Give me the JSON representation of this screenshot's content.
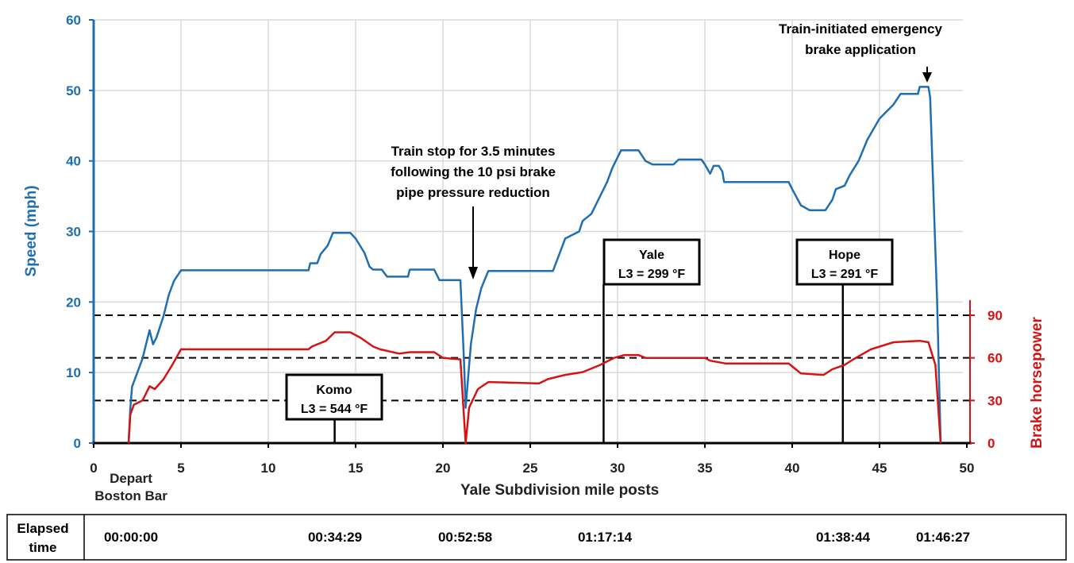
{
  "chart_data": {
    "type": "line",
    "xlabel": "Yale Subdivision mile posts",
    "ylabel": "Speed (mph)",
    "y2label": "Brake horsepower",
    "xlim": [
      0,
      50
    ],
    "ylim": [
      0,
      60
    ],
    "y2lim": [
      0,
      90
    ],
    "x_ticks": [
      "0",
      "5",
      "10",
      "15",
      "20",
      "25",
      "30",
      "35",
      "40",
      "45",
      "50"
    ],
    "y_ticks": [
      "0",
      "10",
      "20",
      "30",
      "40",
      "50",
      "60"
    ],
    "y2_ticks": [
      "0",
      "30",
      "60",
      "90"
    ],
    "grid": true,
    "colors": {
      "speed": "#1f6fb0",
      "bhp": "#d41414"
    },
    "depart_label": [
      "Depart",
      "Boston Bar"
    ],
    "series": [
      {
        "name": "Speed (mph)",
        "axis": "left",
        "points": [
          [
            2.0,
            0
          ],
          [
            2.1,
            5
          ],
          [
            2.2,
            8
          ],
          [
            2.5,
            10
          ],
          [
            2.8,
            12
          ],
          [
            3.0,
            14
          ],
          [
            3.2,
            16
          ],
          [
            3.4,
            14
          ],
          [
            3.6,
            15
          ],
          [
            4.0,
            18
          ],
          [
            4.3,
            21
          ],
          [
            4.6,
            23
          ],
          [
            5.0,
            24.5
          ],
          [
            12.3,
            24.5
          ],
          [
            12.4,
            25.5
          ],
          [
            12.8,
            25.5
          ],
          [
            13.0,
            26.8
          ],
          [
            13.4,
            28
          ],
          [
            13.7,
            29.8
          ],
          [
            14.7,
            29.8
          ],
          [
            15.0,
            29
          ],
          [
            15.5,
            27
          ],
          [
            15.8,
            25
          ],
          [
            16.0,
            24.6
          ],
          [
            16.5,
            24.6
          ],
          [
            16.8,
            23.6
          ],
          [
            18.0,
            23.6
          ],
          [
            18.1,
            24.6
          ],
          [
            19.5,
            24.6
          ],
          [
            19.8,
            23.1
          ],
          [
            21.0,
            23.1
          ],
          [
            21.2,
            12
          ],
          [
            21.3,
            5
          ],
          [
            21.4,
            8
          ],
          [
            21.6,
            14
          ],
          [
            21.9,
            19
          ],
          [
            22.2,
            22
          ],
          [
            22.6,
            24.4
          ],
          [
            26.3,
            24.4
          ],
          [
            26.5,
            25.7
          ],
          [
            26.7,
            27
          ],
          [
            27.0,
            29
          ],
          [
            27.8,
            30
          ],
          [
            28.0,
            31.5
          ],
          [
            28.5,
            32.5
          ],
          [
            29.0,
            35
          ],
          [
            29.4,
            37
          ],
          [
            29.7,
            39
          ],
          [
            30.0,
            40.5
          ],
          [
            30.2,
            41.5
          ],
          [
            31.2,
            41.5
          ],
          [
            31.6,
            40
          ],
          [
            32.0,
            39.5
          ],
          [
            33.2,
            39.5
          ],
          [
            33.5,
            40.2
          ],
          [
            34.8,
            40.2
          ],
          [
            35.0,
            39.5
          ],
          [
            35.3,
            38.2
          ],
          [
            35.5,
            39.3
          ],
          [
            35.8,
            39.3
          ],
          [
            36.0,
            38.5
          ],
          [
            36.1,
            37
          ],
          [
            39.8,
            37
          ],
          [
            40.0,
            36
          ],
          [
            40.5,
            33.7
          ],
          [
            41.0,
            33
          ],
          [
            41.9,
            33
          ],
          [
            42.3,
            34.5
          ],
          [
            42.5,
            36
          ],
          [
            43.0,
            36.5
          ],
          [
            43.3,
            38
          ],
          [
            43.8,
            40
          ],
          [
            44.3,
            43
          ],
          [
            45.0,
            46
          ],
          [
            45.8,
            48
          ],
          [
            46.2,
            49.5
          ],
          [
            47.2,
            49.5
          ],
          [
            47.3,
            50.5
          ],
          [
            47.8,
            50.5
          ],
          [
            47.9,
            49
          ],
          [
            48.3,
            20
          ],
          [
            48.5,
            0
          ]
        ]
      },
      {
        "name": "Brake horsepower",
        "axis": "right",
        "points": [
          [
            2.0,
            0
          ],
          [
            2.1,
            20
          ],
          [
            2.3,
            27
          ],
          [
            2.8,
            30
          ],
          [
            3.2,
            40
          ],
          [
            3.5,
            38
          ],
          [
            4.0,
            45
          ],
          [
            4.5,
            55
          ],
          [
            5.0,
            66
          ],
          [
            12.3,
            66
          ],
          [
            12.5,
            68
          ],
          [
            13.3,
            72
          ],
          [
            13.8,
            78
          ],
          [
            14.7,
            78
          ],
          [
            15.3,
            74
          ],
          [
            16.0,
            68
          ],
          [
            16.4,
            66
          ],
          [
            17.5,
            63
          ],
          [
            18.1,
            64
          ],
          [
            19.5,
            64
          ],
          [
            20.0,
            60
          ],
          [
            21.0,
            59
          ],
          [
            21.3,
            0
          ],
          [
            21.5,
            25
          ],
          [
            22.0,
            38
          ],
          [
            22.6,
            43
          ],
          [
            25.5,
            42
          ],
          [
            26.0,
            45
          ],
          [
            27.0,
            48
          ],
          [
            28.0,
            50
          ],
          [
            29.0,
            55
          ],
          [
            29.8,
            60
          ],
          [
            30.4,
            62
          ],
          [
            31.2,
            62
          ],
          [
            31.6,
            60
          ],
          [
            35.0,
            60
          ],
          [
            35.3,
            58
          ],
          [
            36.2,
            56
          ],
          [
            39.8,
            56
          ],
          [
            40.0,
            54
          ],
          [
            40.5,
            49
          ],
          [
            41.8,
            48
          ],
          [
            42.3,
            52
          ],
          [
            43.0,
            55
          ],
          [
            43.5,
            59
          ],
          [
            44.5,
            66
          ],
          [
            45.8,
            71
          ],
          [
            47.3,
            72
          ],
          [
            47.8,
            71
          ],
          [
            48.2,
            55
          ],
          [
            48.5,
            0
          ]
        ]
      }
    ],
    "reference_lines_bhp": [
      30,
      60,
      90
    ],
    "annotations": [
      {
        "name": "train-stop",
        "lines": [
          "Train stop for 3.5 minutes",
          "following the 10 psi brake",
          "pipe pressure reduction"
        ],
        "x": 21.7
      },
      {
        "name": "emergency-brake",
        "lines": [
          "Train-initiated emergency",
          "brake application"
        ],
        "x": 47.5
      }
    ],
    "locations": [
      {
        "name": "Komo",
        "temp": "L3 = 544 °F",
        "x": 13.8
      },
      {
        "name": "Yale",
        "temp": "L3 = 299 °F",
        "x": 29.2
      },
      {
        "name": "Hope",
        "temp": "L3 = 291 °F",
        "x": 42.9
      }
    ]
  },
  "elapsed": {
    "label": [
      "Elapsed",
      "time"
    ],
    "times": [
      {
        "value": "00:00:00",
        "x": 2.1
      },
      {
        "value": "00:34:29",
        "x": 13.8
      },
      {
        "value": "00:52:58",
        "x": 21.3
      },
      {
        "value": "01:17:14",
        "x": 29.2
      },
      {
        "value": "01:38:44",
        "x": 42.9
      },
      {
        "value": "01:46:27",
        "x": 48.6
      }
    ]
  }
}
